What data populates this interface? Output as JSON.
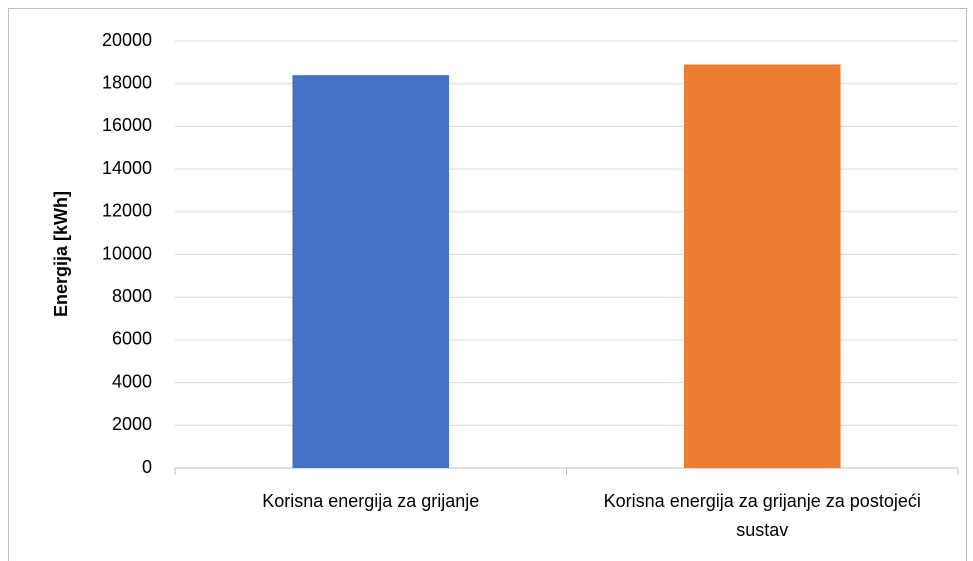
{
  "chart_data": {
    "type": "bar",
    "y_label": "Energija [kWh]",
    "categories": [
      "Korisna energija za grijanje",
      "Korisna energija za grijanje za postojeći sustav"
    ],
    "values": [
      18400,
      18900
    ],
    "colors": [
      "#4472c4",
      "#ed7d31"
    ],
    "ylim": [
      0,
      20000
    ],
    "yticks": [
      0,
      2000,
      4000,
      6000,
      8000,
      10000,
      12000,
      14000,
      16000,
      18000,
      20000
    ],
    "grid": true
  }
}
